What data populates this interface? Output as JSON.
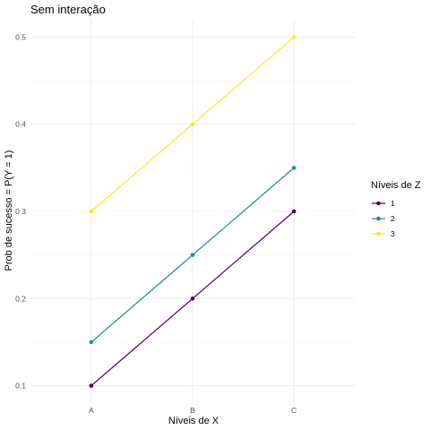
{
  "chart_data": {
    "type": "line",
    "title": "Sem interação",
    "xlabel": "Níveis de X",
    "ylabel": "Prob de sucesso = P(Y = 1)",
    "categories": [
      "A",
      "B",
      "C"
    ],
    "yticks": [
      "0.1",
      "0.2",
      "0.3",
      "0.4",
      "0.5"
    ],
    "ylim": [
      0.08,
      0.52
    ],
    "grid": true,
    "legend": {
      "title": "Níveis de Z",
      "position": "right"
    },
    "series": [
      {
        "name": "1",
        "color": "#440154",
        "values": [
          0.1,
          0.2,
          0.3
        ]
      },
      {
        "name": "2",
        "color": "#21908C",
        "values": [
          0.15,
          0.25,
          0.35
        ]
      },
      {
        "name": "3",
        "color": "#FDE725",
        "values": [
          0.3,
          0.4,
          0.5
        ]
      }
    ]
  }
}
